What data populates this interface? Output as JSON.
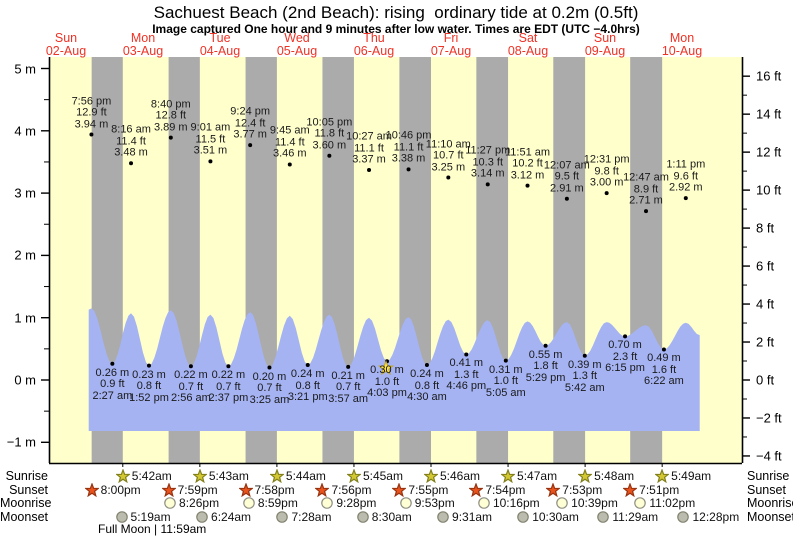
{
  "title": "Sachuest Beach (2nd Beach): rising  ordinary tide at 0.2m (0.5ft)",
  "subtitle": "Image captured One hour and 9 minutes after low water. Times are EDT (UTC −4.0hrs)",
  "chart_data": {
    "type": "area",
    "description": "tide height curve over 9 days with labeled high/low tide points, day columns and night shading",
    "axes": {
      "left_unit": "m",
      "right_unit": "ft",
      "left_tick_labels": [
        "5 m",
        "4 m",
        "3 m",
        "2 m",
        "1 m",
        "0 m",
        "−1 m"
      ],
      "left_tick_values": [
        5,
        4,
        3,
        2,
        1,
        0,
        -1
      ],
      "right_tick_labels": [
        "16 ft",
        "14 ft",
        "12 ft",
        "10 ft",
        "8 ft",
        "6 ft",
        "4 ft",
        "2 ft",
        "0 ft",
        "−2 ft",
        "−4 ft"
      ],
      "right_tick_values": [
        16,
        14,
        12,
        10,
        8,
        6,
        4,
        2,
        0,
        -2,
        -4
      ]
    },
    "days": [
      {
        "name": "Sun",
        "date": "02-Aug"
      },
      {
        "name": "Mon",
        "date": "03-Aug"
      },
      {
        "name": "Tue",
        "date": "04-Aug"
      },
      {
        "name": "Wed",
        "date": "05-Aug"
      },
      {
        "name": "Thu",
        "date": "06-Aug"
      },
      {
        "name": "Fri",
        "date": "07-Aug"
      },
      {
        "name": "Sat",
        "date": "08-Aug"
      },
      {
        "name": "Sun",
        "date": "09-Aug"
      },
      {
        "name": "Mon",
        "date": "10-Aug"
      }
    ],
    "high_tides": [
      {
        "day": 0,
        "time": "7:56 pm",
        "ft": "12.9 ft",
        "m": "3.94 m",
        "value_m": 3.94,
        "curve_m": 1.15
      },
      {
        "day": 1,
        "time": "8:16 am",
        "ft": "11.4 ft",
        "m": "3.48 m",
        "value_m": 3.48,
        "curve_m": 1.07
      },
      {
        "day": 1,
        "time": "8:40 pm",
        "ft": "12.8 ft",
        "m": "3.89 m",
        "value_m": 3.89,
        "curve_m": 1.12
      },
      {
        "day": 2,
        "time": "9:01 am",
        "ft": "11.5 ft",
        "m": "3.51 m",
        "value_m": 3.51,
        "curve_m": 1.05
      },
      {
        "day": 2,
        "time": "9:24 pm",
        "ft": "12.4 ft",
        "m": "3.77 m",
        "value_m": 3.77,
        "curve_m": 1.09
      },
      {
        "day": 3,
        "time": "9:45 am",
        "ft": "11.4 ft",
        "m": "3.46 m",
        "value_m": 3.46,
        "curve_m": 1.03
      },
      {
        "day": 3,
        "time": "10:05 pm",
        "ft": "11.8 ft",
        "m": "3.60 m",
        "value_m": 3.6,
        "curve_m": 1.05
      },
      {
        "day": 4,
        "time": "10:27 am",
        "ft": "11.1 ft",
        "m": "3.37 m",
        "value_m": 3.37,
        "curve_m": 1.0
      },
      {
        "day": 4,
        "time": "10:46 pm",
        "ft": "11.1 ft",
        "m": "3.38 m",
        "value_m": 3.38,
        "curve_m": 1.01
      },
      {
        "day": 5,
        "time": "11:10 am",
        "ft": "10.7 ft",
        "m": "3.25 m",
        "value_m": 3.25,
        "curve_m": 0.97
      },
      {
        "day": 5,
        "time": "11:27 pm",
        "ft": "10.3 ft",
        "m": "3.14 m",
        "value_m": 3.14,
        "curve_m": 0.96
      },
      {
        "day": 6,
        "time": "11:51 am",
        "ft": "10.2 ft",
        "m": "3.12 m",
        "value_m": 3.12,
        "curve_m": 0.94
      },
      {
        "day": 7,
        "time": "12:07 am",
        "ft": "9.5 ft",
        "m": "2.91 m",
        "value_m": 2.91,
        "curve_m": 0.93
      },
      {
        "day": 7,
        "time": "12:31 pm",
        "ft": "9.8 ft",
        "m": "3.00 m",
        "value_m": 3.0,
        "curve_m": 0.93
      },
      {
        "day": 8,
        "time": "12:47 am",
        "ft": "8.9 ft",
        "m": "2.71 m",
        "value_m": 2.71,
        "curve_m": 0.88
      },
      {
        "day": 8,
        "time": "1:11 pm",
        "ft": "9.6 ft",
        "m": "2.92 m",
        "value_m": 2.92,
        "curve_m": 0.92
      }
    ],
    "low_tides": [
      {
        "day": 1,
        "time": "2:27 am",
        "m": "0.26 m",
        "ft": "0.9 ft",
        "value_m": 0.26
      },
      {
        "day": 1,
        "time": "1:52 pm",
        "m": "0.23 m",
        "ft": "0.8 ft",
        "value_m": 0.23
      },
      {
        "day": 2,
        "time": "2:56 am",
        "m": "0.22 m",
        "ft": "0.7 ft",
        "value_m": 0.22
      },
      {
        "day": 2,
        "time": "2:37 pm",
        "m": "0.22 m",
        "ft": "0.7 ft",
        "value_m": 0.22
      },
      {
        "day": 3,
        "time": "3:25 am",
        "m": "0.20 m",
        "ft": "0.7 ft",
        "value_m": 0.2
      },
      {
        "day": 3,
        "time": "3:21 pm",
        "m": "0.24 m",
        "ft": "0.8 ft",
        "value_m": 0.24
      },
      {
        "day": 4,
        "time": "3:57 am",
        "m": "0.21 m",
        "ft": "0.7 ft",
        "value_m": 0.21
      },
      {
        "day": 4,
        "time": "4:03 pm",
        "m": "0.30 m",
        "ft": "1.0 ft",
        "value_m": 0.3,
        "marker": true
      },
      {
        "day": 5,
        "time": "4:30 am",
        "m": "0.24 m",
        "ft": "0.8 ft",
        "value_m": 0.24
      },
      {
        "day": 5,
        "time": "4:46 pm",
        "m": "0.41 m",
        "ft": "1.3 ft",
        "value_m": 0.41
      },
      {
        "day": 6,
        "time": "5:05 am",
        "m": "0.31 m",
        "ft": "1.0 ft",
        "value_m": 0.31
      },
      {
        "day": 6,
        "time": "5:29 pm",
        "m": "0.55 m",
        "ft": "1.8 ft",
        "value_m": 0.55
      },
      {
        "day": 7,
        "time": "5:42 am",
        "m": "0.39 m",
        "ft": "1.3 ft",
        "value_m": 0.39
      },
      {
        "day": 7,
        "time": "6:15 pm",
        "m": "0.70 m",
        "ft": "2.3 ft",
        "value_m": 0.7
      },
      {
        "day": 8,
        "time": "6:22 am",
        "m": "0.49 m",
        "ft": "1.6 ft",
        "value_m": 0.49
      }
    ],
    "curve_edges": {
      "start": {
        "day": 0,
        "frac": 0.795,
        "value_m": 1.13
      },
      "end": {
        "day": 8,
        "frac": 0.73,
        "value_m": 0.72
      }
    }
  },
  "astro": {
    "row_labels": [
      "Sunrise",
      "Sunset",
      "Moonrise",
      "Moonset"
    ],
    "sunrise": [
      {
        "day": 1,
        "time": "5:42am"
      },
      {
        "day": 2,
        "time": "5:43am"
      },
      {
        "day": 3,
        "time": "5:44am"
      },
      {
        "day": 4,
        "time": "5:45am"
      },
      {
        "day": 5,
        "time": "5:46am"
      },
      {
        "day": 6,
        "time": "5:47am"
      },
      {
        "day": 7,
        "time": "5:48am"
      },
      {
        "day": 8,
        "time": "5:49am"
      }
    ],
    "sunset": [
      {
        "day": 0,
        "time": "8:00pm"
      },
      {
        "day": 1,
        "time": "7:59pm"
      },
      {
        "day": 2,
        "time": "7:58pm"
      },
      {
        "day": 3,
        "time": "7:56pm"
      },
      {
        "day": 4,
        "time": "7:55pm"
      },
      {
        "day": 5,
        "time": "7:54pm"
      },
      {
        "day": 6,
        "time": "7:53pm"
      },
      {
        "day": 7,
        "time": "7:51pm"
      }
    ],
    "moonrise": [
      {
        "day": 1,
        "time": "8:26pm"
      },
      {
        "day": 2,
        "time": "8:59pm"
      },
      {
        "day": 3,
        "time": "9:28pm"
      },
      {
        "day": 4,
        "time": "9:53pm"
      },
      {
        "day": 5,
        "time": "10:16pm"
      },
      {
        "day": 6,
        "time": "10:39pm"
      },
      {
        "day": 7,
        "time": "11:02pm"
      }
    ],
    "moonset": [
      {
        "day": 1,
        "time": "5:19am"
      },
      {
        "day": 2,
        "time": "6:24am"
      },
      {
        "day": 3,
        "time": "7:28am"
      },
      {
        "day": 4,
        "time": "8:30am"
      },
      {
        "day": 5,
        "time": "9:31am"
      },
      {
        "day": 6,
        "time": "10:30am"
      },
      {
        "day": 7,
        "time": "11:29am"
      },
      {
        "day": 8,
        "time": "12:28pm"
      }
    ],
    "full_moon": "Full Moon | 11:59am"
  },
  "colors": {
    "day_band": "#ffffcc",
    "night_band": "#ababab",
    "tide_fill": "#a5b3f3",
    "day_label_red": "#ee3326",
    "sunrise_fill": "#d3c832",
    "sunrise_stroke": "#82801c",
    "sunset_fill": "#e8531d",
    "sunset_stroke": "#99330f",
    "moonrise_fill": "#ffffd6",
    "moonrise_stroke": "#8f8f83",
    "moonset_fill": "#bcbcae",
    "moonset_stroke": "#82826f",
    "marker_fill": "#ffe44c",
    "marker_stroke": "#c0a422"
  }
}
